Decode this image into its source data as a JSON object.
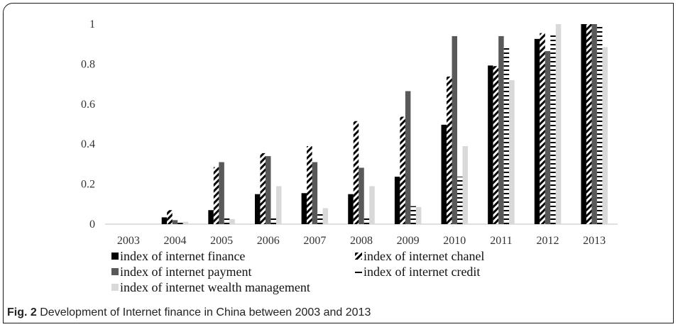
{
  "figure": {
    "label": "Fig. 2",
    "text": "Development of Internet finance in China between 2003 and 2013"
  },
  "chart_data": {
    "type": "bar",
    "title": "",
    "xlabel": "",
    "ylabel": "",
    "ylim": [
      0,
      1
    ],
    "yticks": [
      "0",
      "0.2",
      "0.4",
      "0.6",
      "0.8",
      "1"
    ],
    "grid": false,
    "legend_position": "bottom-left",
    "categories": [
      "2003",
      "2004",
      "2005",
      "2006",
      "2007",
      "2008",
      "2009",
      "2010",
      "2011",
      "2012",
      "2013"
    ],
    "series": [
      {
        "name": "index of internet finance",
        "pattern": "solid",
        "color": "#000000",
        "values": [
          0,
          0.034,
          0.07,
          0.15,
          0.155,
          0.15,
          0.237,
          0.497,
          0.793,
          0.926,
          1.0
        ]
      },
      {
        "name": "index of internet chanel",
        "pattern": "diagonal-stripes",
        "color": "#000000",
        "values": [
          0,
          0.07,
          0.285,
          0.355,
          0.39,
          0.515,
          0.537,
          0.738,
          0.79,
          0.955,
          1.0
        ]
      },
      {
        "name": "index of internet payment",
        "pattern": "solid",
        "color": "#595959",
        "values": [
          0,
          0.02,
          0.31,
          0.34,
          0.31,
          0.282,
          0.665,
          0.94,
          0.94,
          0.865,
          1.0
        ]
      },
      {
        "name": "index of internet credit",
        "pattern": "horizontal-dashes",
        "color": "#000000",
        "values": [
          0,
          0.01,
          0.035,
          0.035,
          0.06,
          0.035,
          0.09,
          0.237,
          0.887,
          0.95,
          1.0
        ]
      },
      {
        "name": "index of internet wealth management",
        "pattern": "solid",
        "color": "#d9d9d9",
        "values": [
          0,
          0.012,
          0.025,
          0.19,
          0.08,
          0.19,
          0.085,
          0.39,
          0.72,
          1.0,
          0.885
        ]
      }
    ]
  }
}
